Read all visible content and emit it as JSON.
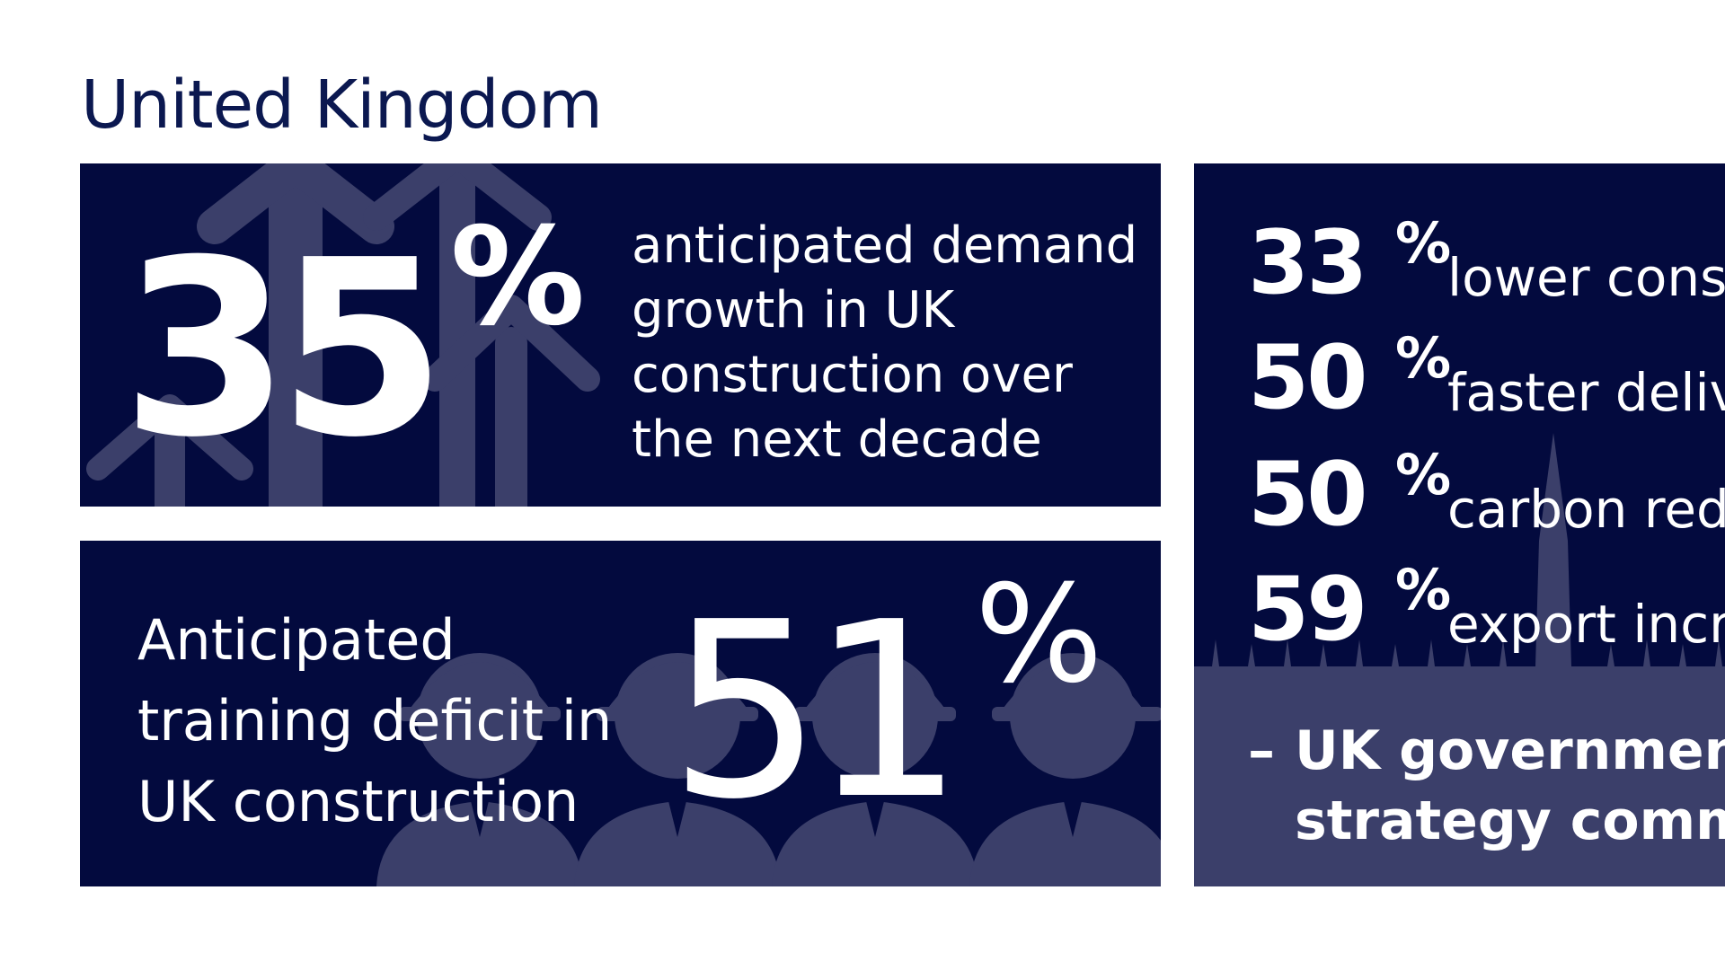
{
  "title": "United Kingdom",
  "colors": {
    "panel": "#030a3e",
    "shape": "#3b3f6a",
    "title": "#0b1850",
    "text": "#ffffff"
  },
  "demand": {
    "value": "35",
    "percent": "%",
    "description": [
      "anticipated demand",
      "growth in UK",
      "construction over",
      "the next decade"
    ],
    "icon": "arrows-up-icon"
  },
  "training": {
    "description": [
      "Anticipated",
      "training deficit in",
      "UK construction"
    ],
    "value": "51",
    "percent": "%",
    "icon": "workers-hardhat-icon"
  },
  "targets": {
    "items": [
      {
        "value": "33",
        "percent": "%",
        "label": "lower cons"
      },
      {
        "value": "50",
        "percent": "%",
        "label": "faster deliv"
      },
      {
        "value": "50",
        "percent": "%",
        "label": "carbon red"
      },
      {
        "value": "59",
        "percent": "%",
        "label": "export incr"
      }
    ],
    "quote_dash": "–",
    "quote_lines": [
      "UK government",
      "strategy commi"
    ],
    "icon": "london-skyline-icon"
  }
}
